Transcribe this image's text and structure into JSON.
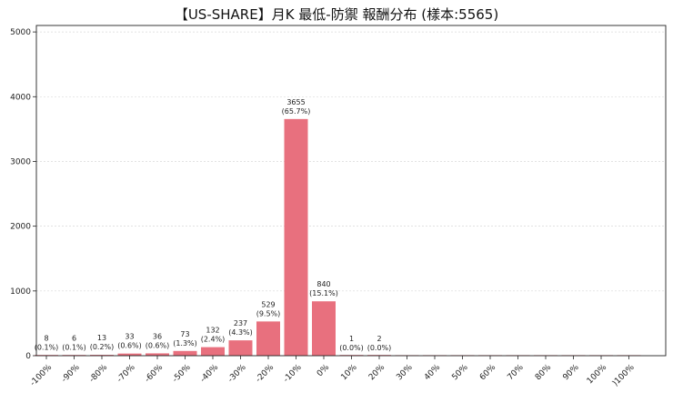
{
  "chart_data": {
    "type": "bar",
    "title": "【US-SHARE】月K 最低-防禦 報酬分布 (樣本:5565)",
    "xlabel": "",
    "ylabel": "",
    "ylim": [
      0,
      5100
    ],
    "yticks": [
      0,
      1000,
      2000,
      3000,
      4000,
      5000
    ],
    "grid": true,
    "bar_color": "#e8707e",
    "categories": [
      "-100%",
      "-90%",
      "-80%",
      "-70%",
      "-60%",
      "-50%",
      "-40%",
      "-30%",
      "-20%",
      "-10%",
      "0%",
      "10%",
      "20%",
      "30%",
      "40%",
      "50%",
      "60%",
      "70%",
      "80%",
      "90%",
      "100%",
      ")100%"
    ],
    "values": [
      8,
      6,
      13,
      33,
      36,
      73,
      132,
      237,
      529,
      3655,
      840,
      1,
      2,
      0,
      0,
      0,
      0,
      0,
      0,
      0,
      0,
      0
    ],
    "data_labels": [
      [
        "8",
        "(0.1%)"
      ],
      [
        "6",
        "(0.1%)"
      ],
      [
        "13",
        "(0.2%)"
      ],
      [
        "33",
        "(0.6%)"
      ],
      [
        "36",
        "(0.6%)"
      ],
      [
        "73",
        "(1.3%)"
      ],
      [
        "132",
        "(2.4%)"
      ],
      [
        "237",
        "(4.3%)"
      ],
      [
        "529",
        "(9.5%)"
      ],
      [
        "3655",
        "(65.7%)"
      ],
      [
        "840",
        "(15.1%)"
      ],
      [
        "1",
        "(0.0%)"
      ],
      [
        "2",
        "(0.0%)"
      ]
    ]
  }
}
